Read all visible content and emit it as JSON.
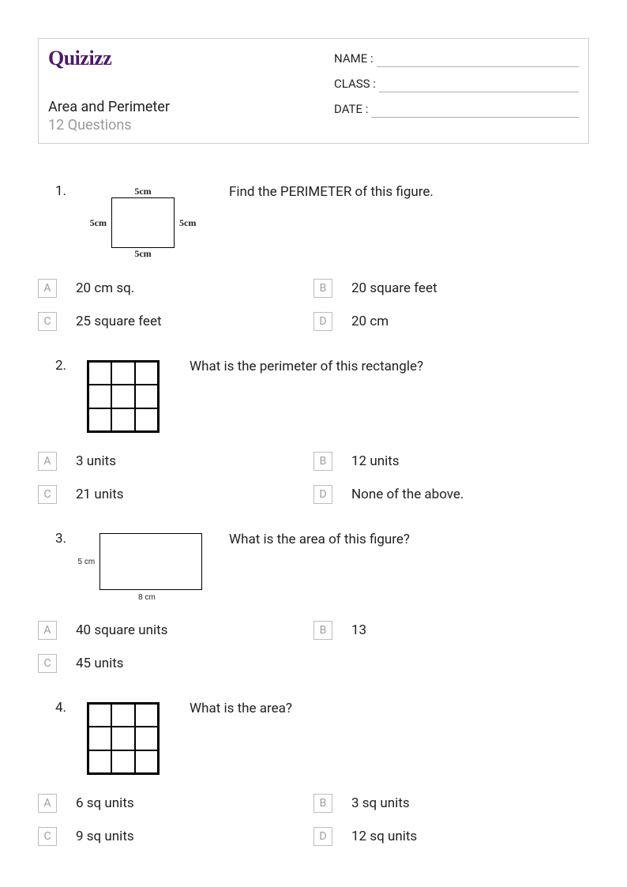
{
  "header": {
    "logo": "Quizizz",
    "title": "Area and Perimeter",
    "question_count": "12 Questions",
    "fields": {
      "name": "NAME :",
      "class": "CLASS :",
      "date": "DATE  :"
    }
  },
  "styles": {
    "logo_color": "#4b1a6a",
    "muted_text": "#9a9a9a",
    "border_color": "#cfcfcf",
    "answer_box_border": "#bdbdbd",
    "answer_box_text": "#9e9e9e",
    "body_text": "#222"
  },
  "figures": {
    "fig1": {
      "label": "5cm",
      "border_color": "#000"
    },
    "fig2": {
      "rows": 3,
      "cols": 3,
      "border_color": "#000"
    },
    "fig3": {
      "left_label": "5 cm",
      "bottom_label": "8 cm",
      "border_color": "#000"
    },
    "fig4": {
      "rows": 3,
      "cols": 3,
      "border_color": "#000"
    }
  },
  "questions": [
    {
      "num": "1.",
      "prompt": "Find the PERIMETER of this figure.",
      "answers": {
        "A": "20 cm sq.",
        "B": "20 square feet",
        "C": "25 square feet",
        "D": "20 cm"
      }
    },
    {
      "num": "2.",
      "prompt": "What is the perimeter of this rectangle?",
      "answers": {
        "A": "3 units",
        "B": "12 units",
        "C": "21 units",
        "D": "None of the above."
      }
    },
    {
      "num": "3.",
      "prompt": "What is the area of this figure?",
      "answers": {
        "A": "40 square units",
        "B": "13",
        "C": "45 units"
      }
    },
    {
      "num": "4.",
      "prompt": "What is the area?",
      "answers": {
        "A": "6 sq units",
        "B": "3 sq units",
        "C": "9 sq units",
        "D": "12 sq units"
      }
    }
  ]
}
